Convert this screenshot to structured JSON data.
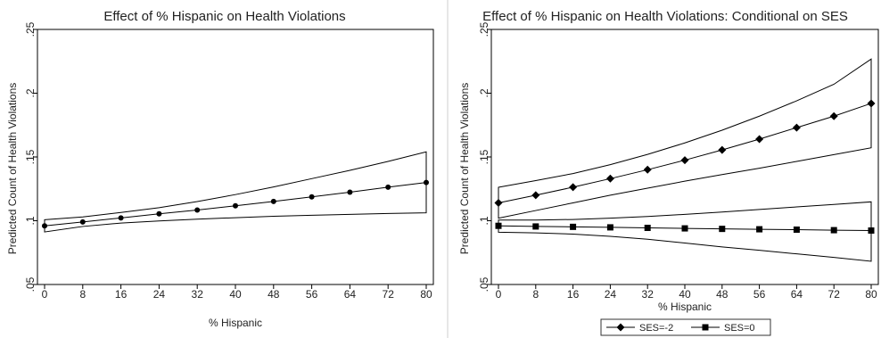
{
  "chart_data": [
    {
      "type": "line",
      "title": "Effect of % Hispanic on Health Violations",
      "xlabel": "% Hispanic",
      "ylabel": "Predicted Count of Health Violations",
      "x": [
        0,
        8,
        16,
        24,
        32,
        40,
        48,
        56,
        64,
        72,
        80
      ],
      "xticks": [
        "0",
        "8",
        "16",
        "24",
        "32",
        "40",
        "48",
        "56",
        "64",
        "72",
        "80"
      ],
      "yticks": [
        ".05",
        ".1",
        ".15",
        ".2",
        ".25"
      ],
      "ylim": [
        0.05,
        0.25
      ],
      "series": [
        {
          "values": [
            0.096,
            0.099,
            0.1022,
            0.1054,
            0.1084,
            0.1117,
            0.1151,
            0.1187,
            0.1224,
            0.1263,
            0.13
          ],
          "lower": [
            0.0912,
            0.0955,
            0.0982,
            0.0998,
            0.1012,
            0.1024,
            0.1035,
            0.1043,
            0.105,
            0.1057,
            0.1062
          ],
          "upper": [
            0.1008,
            0.103,
            0.1065,
            0.1102,
            0.115,
            0.1205,
            0.1265,
            0.133,
            0.1395,
            0.1465,
            0.154
          ],
          "marker": "circle"
        }
      ],
      "grid": false,
      "legend": []
    },
    {
      "type": "line",
      "title": "Effect of % Hispanic on Health Violations: Conditional on SES",
      "xlabel": "% Hispanic",
      "ylabel": "Predicted Count of Health Violations",
      "x": [
        0,
        8,
        16,
        24,
        32,
        40,
        48,
        56,
        64,
        72,
        80
      ],
      "xticks": [
        "0",
        "8",
        "16",
        "24",
        "32",
        "40",
        "48",
        "56",
        "64",
        "72",
        "80"
      ],
      "yticks": [
        ".05",
        ".1",
        ".15",
        ".2",
        ".25"
      ],
      "ylim": [
        0.05,
        0.25
      ],
      "series": [
        {
          "name": "SES=-2",
          "values": [
            0.114,
            0.12,
            0.1263,
            0.133,
            0.14,
            0.1475,
            0.1555,
            0.164,
            0.173,
            0.182,
            0.192
          ],
          "lower": [
            0.102,
            0.108,
            0.114,
            0.12,
            0.1255,
            0.131,
            0.1362,
            0.1412,
            0.1465,
            0.1518,
            0.1572
          ],
          "upper": [
            0.1262,
            0.1315,
            0.137,
            0.144,
            0.152,
            0.161,
            0.171,
            0.182,
            0.194,
            0.207,
            0.2268
          ],
          "marker": "diamond"
        },
        {
          "name": "SES=0",
          "values": [
            0.096,
            0.0955,
            0.0952,
            0.0948,
            0.0944,
            0.094,
            0.0936,
            0.0933,
            0.093,
            0.0926,
            0.0923
          ],
          "lower": [
            0.091,
            0.0905,
            0.0895,
            0.0878,
            0.0855,
            0.0825,
            0.0795,
            0.0768,
            0.074,
            0.0712,
            0.0682
          ],
          "upper": [
            0.1005,
            0.1005,
            0.101,
            0.102,
            0.1033,
            0.105,
            0.1068,
            0.1088,
            0.1108,
            0.1128,
            0.1148
          ],
          "marker": "square"
        }
      ],
      "grid": false,
      "legend": [
        "SES=-2",
        "SES=0"
      ],
      "legend_position": "bottom"
    }
  ]
}
